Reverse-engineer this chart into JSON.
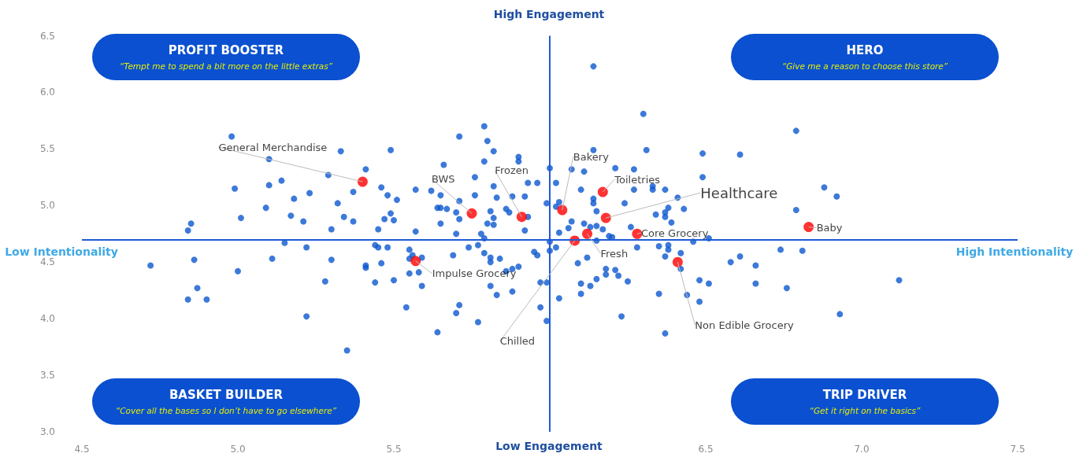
{
  "chart_data": {
    "type": "scatter",
    "marker": "circle",
    "grid": false,
    "xlim": [
      4.5,
      7.5
    ],
    "ylim": [
      3.0,
      6.5
    ],
    "xticks": [
      4.5,
      {
        "value": 5,
        "label": "5.0"
      },
      5.5,
      {
        "value": 6,
        "label": null
      },
      6.5,
      {
        "value": 7,
        "label": "7.0"
      },
      7.5
    ],
    "yticks": [
      {
        "value": 3,
        "label": "3.0"
      },
      3.5,
      {
        "value": 4,
        "label": "4.0"
      },
      4.5,
      {
        "value": 5,
        "label": "5.0"
      },
      5.5,
      {
        "value": 6,
        "label": "6.0"
      },
      6.5
    ],
    "ref_lines": [
      {
        "axis": "x",
        "value": 6.0,
        "color": "#1f5bd6"
      },
      {
        "axis": "y",
        "value": 4.7,
        "color": "#1f5bd6"
      }
    ],
    "series": [
      {
        "color": "#0b57d0",
        "x": [
          4.98,
          5.33,
          5.49,
          5.1,
          5.41,
          5.29,
          5.14,
          5.1,
          4.99,
          5.46,
          5.37,
          5.23,
          5.18,
          5.48,
          5.51,
          5.32,
          5.09,
          5.17,
          5.01,
          5.21,
          5.34,
          5.37,
          5.49,
          5.47,
          5.5,
          4.85,
          4.84,
          5.3,
          5.45,
          5.57,
          5.57,
          5.62,
          5.65,
          5.66,
          5.71,
          5.79,
          5.8,
          5.82,
          5.79,
          5.9,
          5.9,
          5.76,
          5.93,
          5.96,
          5.82,
          5.76,
          5.83,
          5.88,
          5.92,
          5.71,
          5.99,
          5.64,
          5.65,
          5.67,
          5.7,
          5.71,
          5.81,
          5.86,
          5.87,
          5.82,
          5.93,
          5.65,
          5.8,
          5.82,
          5.7,
          5.78,
          5.79,
          5.92,
          5.15,
          5.22,
          5.44,
          5.45,
          5.48,
          5.55,
          5.56,
          5.55,
          5.59,
          5.77,
          5.74,
          5.79,
          5.69,
          5.81,
          5.84,
          5.81,
          5.95,
          5.96,
          4.72,
          4.86,
          5.11,
          5.3,
          5.41,
          5.41,
          5.46,
          5.0,
          5.58,
          5.55,
          5.86,
          5.88,
          5.9,
          4.87,
          5.28,
          5.44,
          5.5,
          5.59,
          5.81,
          5.83,
          5.88,
          5.97,
          4.84,
          4.9,
          5.54,
          5.71,
          5.7,
          5.97,
          5.22,
          5.77,
          5.99,
          5.64,
          5.35,
          6.14,
          6.3,
          6.79,
          6.31,
          6.14,
          6.49,
          6.61,
          6.49,
          6.88,
          6.92,
          6.79,
          6.0,
          6.07,
          6.11,
          6.21,
          6.27,
          6.02,
          6.1,
          6.27,
          6.33,
          6.33,
          6.37,
          6.41,
          6.03,
          6.02,
          6.14,
          6.14,
          6.15,
          6.24,
          6.34,
          6.37,
          6.38,
          6.37,
          6.39,
          6.43,
          6.07,
          6.06,
          6.11,
          6.13,
          6.15,
          6.17,
          6.26,
          6.03,
          6.15,
          6.19,
          6.2,
          6.46,
          6.51,
          6.0,
          6.02,
          6.0,
          6.28,
          6.35,
          6.38,
          6.38,
          6.42,
          6.37,
          6.12,
          6.09,
          6.74,
          6.81,
          6.61,
          6.58,
          6.66,
          6.42,
          6.18,
          6.21,
          6.22,
          6.18,
          6.25,
          6.15,
          6.13,
          6.1,
          6.1,
          6.03,
          5.99,
          6.48,
          6.51,
          6.66,
          6.76,
          6.35,
          6.44,
          6.48,
          6.23,
          6.93,
          6.37,
          7.12
        ],
        "values": [
          5.61,
          5.48,
          5.49,
          5.41,
          5.32,
          5.27,
          5.22,
          5.18,
          5.15,
          5.16,
          5.12,
          5.11,
          5.06,
          5.09,
          5.05,
          5.02,
          4.98,
          4.91,
          4.89,
          4.86,
          4.9,
          4.86,
          4.93,
          4.88,
          4.87,
          4.84,
          4.78,
          4.79,
          4.79,
          4.77,
          5.14,
          5.13,
          5.09,
          5.36,
          5.61,
          5.7,
          5.57,
          5.48,
          5.39,
          5.43,
          5.39,
          5.25,
          5.2,
          5.2,
          5.17,
          5.09,
          5.07,
          5.08,
          5.08,
          5.04,
          5.02,
          4.98,
          4.98,
          4.97,
          4.94,
          4.88,
          4.95,
          4.97,
          4.94,
          4.89,
          4.9,
          4.84,
          4.84,
          4.83,
          4.75,
          4.75,
          4.71,
          4.78,
          4.67,
          4.63,
          4.65,
          4.63,
          4.63,
          4.61,
          4.56,
          4.53,
          4.54,
          4.65,
          4.63,
          4.58,
          4.56,
          4.54,
          4.53,
          4.5,
          4.59,
          4.56,
          4.47,
          4.52,
          4.53,
          4.52,
          4.47,
          4.45,
          4.49,
          4.42,
          4.41,
          4.4,
          4.42,
          4.44,
          4.46,
          4.27,
          4.33,
          4.32,
          4.34,
          4.29,
          4.29,
          4.21,
          4.24,
          4.32,
          4.17,
          4.17,
          4.1,
          4.12,
          4.05,
          4.1,
          4.02,
          3.97,
          3.98,
          3.88,
          3.72,
          6.23,
          5.81,
          5.66,
          5.49,
          5.49,
          5.46,
          5.45,
          5.25,
          5.16,
          5.08,
          4.96,
          5.33,
          5.32,
          5.3,
          5.33,
          5.32,
          5.2,
          5.14,
          5.14,
          5.17,
          5.14,
          5.14,
          5.07,
          5.03,
          4.99,
          5.06,
          5.02,
          4.95,
          5.02,
          4.92,
          4.94,
          4.98,
          4.9,
          4.85,
          4.97,
          4.86,
          4.8,
          4.84,
          4.81,
          4.82,
          4.79,
          4.81,
          4.76,
          4.69,
          4.73,
          4.72,
          4.68,
          4.71,
          4.68,
          4.63,
          4.6,
          4.63,
          4.64,
          4.65,
          4.61,
          4.58,
          4.55,
          4.54,
          4.49,
          4.61,
          4.6,
          4.55,
          4.5,
          4.47,
          4.44,
          4.44,
          4.43,
          4.38,
          4.39,
          4.33,
          4.35,
          4.29,
          4.31,
          4.22,
          4.18,
          4.32,
          4.34,
          4.31,
          4.31,
          4.27,
          4.22,
          4.21,
          4.15,
          4.02,
          4.04,
          3.87,
          4.34
        ]
      },
      {
        "color": "#ff0000",
        "x": [
          5.4,
          5.75,
          5.91,
          5.57,
          6.04,
          6.17,
          6.18,
          6.28,
          6.12,
          6.08,
          6.41,
          6.83
        ],
        "values": [
          5.21,
          4.93,
          4.9,
          4.51,
          4.96,
          5.12,
          4.89,
          4.75,
          4.75,
          4.69,
          4.5,
          4.81
        ]
      }
    ],
    "annotations": [
      "High Engagement",
      "Low Engagement",
      "Low Intentionality",
      "High Intentionality",
      "PROFIT BOOSTER",
      "“Tempt me to spend a bit more on the little extras”",
      "HERO",
      "“Give me a reason to choose this store”",
      "BASKET BUILDER",
      "“Cover all the bases so I don’t have to go elsewhere”",
      "TRIP DRIVER",
      "“Get it right on the basics”",
      {
        "text": "General Merchandise",
        "x": 5.4,
        "y": 5.21
      },
      {
        "text": "BWS",
        "x": 5.75,
        "y": 4.93
      },
      {
        "text": "Frozen",
        "x": 5.91,
        "y": 4.9
      },
      {
        "text": "Impulse Grocery",
        "x": 5.57,
        "y": 4.51
      },
      {
        "text": "Bakery",
        "x": 6.04,
        "y": 4.96
      },
      {
        "text": "Toiletries",
        "x": 6.17,
        "y": 5.12
      },
      {
        "text": "Healthcare",
        "x": 6.18,
        "y": 4.89
      },
      {
        "text": "Core Grocery",
        "x": 6.28,
        "y": 4.75
      },
      {
        "text": "Fresh",
        "x": 6.12,
        "y": 4.75
      },
      {
        "text": "Chilled",
        "x": 6.08,
        "y": 4.69
      },
      {
        "text": "Non Edible Grocery",
        "x": 6.41,
        "y": 4.5
      },
      {
        "text": "Baby",
        "x": 6.83,
        "y": 4.81
      }
    ]
  }
}
